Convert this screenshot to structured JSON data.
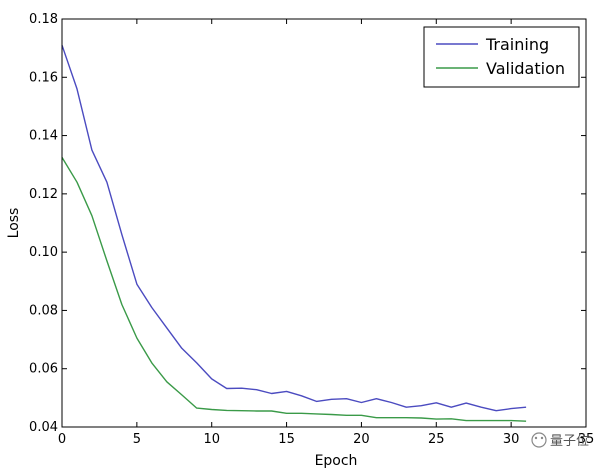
{
  "chart_data": {
    "type": "line",
    "xlabel": "Epoch",
    "ylabel": "Loss",
    "xlim": [
      0,
      35
    ],
    "ylim": [
      0.04,
      0.18
    ],
    "xticks": [
      "0",
      "5",
      "10",
      "15",
      "20",
      "25",
      "30",
      "35"
    ],
    "yticks": [
      "0.04",
      "0.06",
      "0.08",
      "0.10",
      "0.12",
      "0.14",
      "0.16",
      "0.18"
    ],
    "legend_position": "top-right",
    "grid": false,
    "series": [
      {
        "name": "Training",
        "color": "#4b4bc0",
        "x": [
          0,
          1,
          2,
          3,
          4,
          5,
          6,
          7,
          8,
          9,
          10,
          11,
          12,
          13,
          14,
          15,
          16,
          17,
          18,
          19,
          20,
          21,
          22,
          23,
          24,
          25,
          26,
          27,
          28,
          29,
          30,
          31
        ],
        "values": [
          0.171,
          0.156,
          0.135,
          0.124,
          0.106,
          0.089,
          0.081,
          0.074,
          0.067,
          0.062,
          0.0565,
          0.0532,
          0.0533,
          0.0528,
          0.0515,
          0.0522,
          0.0507,
          0.0488,
          0.0495,
          0.0497,
          0.0484,
          0.0497,
          0.0484,
          0.0468,
          0.0473,
          0.0483,
          0.0468,
          0.0482,
          0.0468,
          0.0456,
          0.0463,
          0.0468
        ]
      },
      {
        "name": "Validation",
        "color": "#3a9a48",
        "x": [
          0,
          1,
          2,
          3,
          4,
          5,
          6,
          7,
          8,
          9,
          10,
          11,
          12,
          13,
          14,
          15,
          16,
          17,
          18,
          19,
          20,
          21,
          22,
          23,
          24,
          25,
          26,
          27,
          28,
          29,
          30,
          31
        ],
        "values": [
          0.1325,
          0.124,
          0.1125,
          0.097,
          0.082,
          0.0705,
          0.062,
          0.0555,
          0.051,
          0.0465,
          0.046,
          0.0457,
          0.0456,
          0.0455,
          0.0455,
          0.0447,
          0.0447,
          0.0445,
          0.0443,
          0.044,
          0.044,
          0.0432,
          0.0432,
          0.0432,
          0.0431,
          0.0427,
          0.0428,
          0.0422,
          0.0422,
          0.0422,
          0.0422,
          0.042
        ]
      }
    ]
  },
  "watermark": "量子位"
}
